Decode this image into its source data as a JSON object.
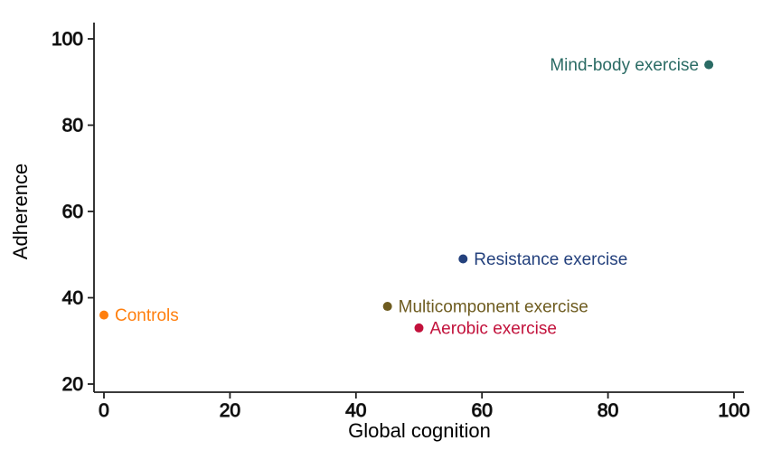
{
  "figure": {
    "background": "#ffffff"
  },
  "chart_data": {
    "type": "scatter",
    "title": "",
    "xlabel": "Global cognition",
    "ylabel": "Adherence",
    "xlim": [
      0,
      100
    ],
    "ylim": [
      20,
      100
    ],
    "x_ticks": [
      0,
      20,
      40,
      60,
      80,
      100
    ],
    "y_ticks": [
      20,
      40,
      60,
      80,
      100
    ],
    "grid": false,
    "legend_position": "none",
    "axis_color": "#1f1f1f",
    "tick_label_color": "#000000",
    "points": [
      {
        "label": "Controls",
        "x": 0,
        "y": 36,
        "color": "#ff7f0e",
        "label_side": "right"
      },
      {
        "label": "Multicomponent exercise",
        "x": 45,
        "y": 38,
        "color": "#6e5c20",
        "label_side": "right"
      },
      {
        "label": "Aerobic exercise",
        "x": 50,
        "y": 33,
        "color": "#c2113b",
        "label_side": "right"
      },
      {
        "label": "Resistance exercise",
        "x": 57,
        "y": 49,
        "color": "#24417d",
        "label_side": "right"
      },
      {
        "label": "Mind-body exercise",
        "x": 96,
        "y": 94,
        "color": "#2a6b64",
        "label_side": "left"
      }
    ]
  }
}
